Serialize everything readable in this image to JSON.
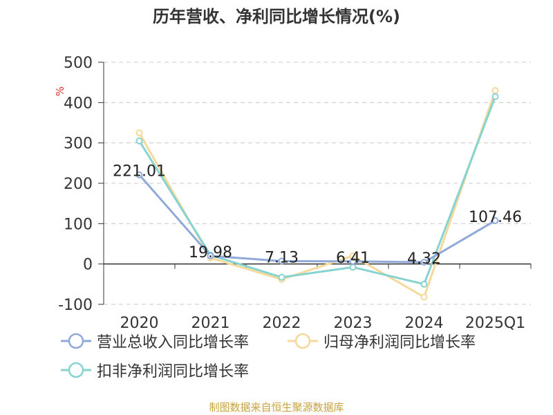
{
  "title": "历年营收、净利同比增长情况(%)",
  "source": "制图数据来自恒生聚源数据库",
  "chart_data": {
    "type": "line",
    "categories": [
      "2020",
      "2021",
      "2022",
      "2023",
      "2024",
      "2025Q1"
    ],
    "ylim": [
      -100,
      500
    ],
    "yticks": [
      -100,
      0,
      100,
      200,
      300,
      400,
      500
    ],
    "ylabel": "%",
    "grid": true,
    "legend_position": "bottom",
    "series": [
      {
        "name": "营业总收入同比增长率",
        "color": "#8fa9d8",
        "values": [
          221.01,
          19.98,
          7.13,
          6.41,
          4.32,
          107.46
        ],
        "labels": [
          "221.01",
          "19.98",
          "7.13",
          "6.41",
          "4.32",
          "107.46"
        ]
      },
      {
        "name": "归母净利润同比增长率",
        "color": "#f5d99a",
        "values": [
          325,
          15,
          -38,
          20,
          -82,
          430
        ]
      },
      {
        "name": "扣非净利润同比增长率",
        "color": "#86d3d0",
        "values": [
          305,
          22,
          -33,
          -8,
          -50,
          415
        ]
      }
    ]
  }
}
